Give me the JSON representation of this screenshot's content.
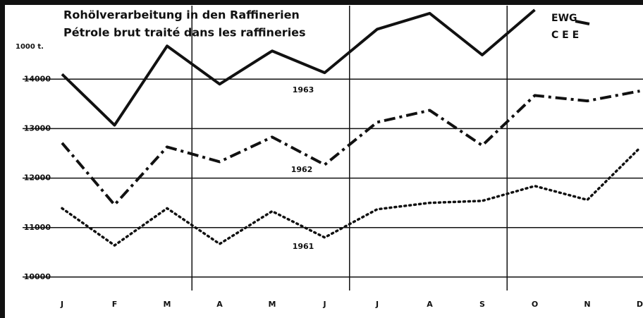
{
  "chart_data": {
    "type": "line",
    "title": "Rohölverarbeitung in den Raffinerien",
    "subtitle": "Pétrole brut traité dans les raffineries",
    "y_label": "1000 t.",
    "legend": [
      "EWG",
      "C E E"
    ],
    "categories": [
      "J",
      "F",
      "M",
      "A",
      "M",
      "J",
      "J",
      "A",
      "S",
      "O",
      "N",
      "D"
    ],
    "series": [
      {
        "name": "1963",
        "color": "#111111",
        "dash": "solid",
        "values": [
          14100,
          13070,
          14670,
          13900,
          14570,
          14130,
          15010,
          15330,
          14490,
          15400,
          null,
          null
        ]
      },
      {
        "name": "1962",
        "color": "#111111",
        "dash": "dashdot",
        "values": [
          12710,
          11460,
          12630,
          12330,
          12830,
          12270,
          13130,
          13370,
          12660,
          13670,
          13560,
          13760
        ]
      },
      {
        "name": "1961",
        "color": "#111111",
        "dash": "dotted",
        "values": [
          11390,
          10640,
          11390,
          10670,
          11330,
          10800,
          11370,
          11500,
          11540,
          11840,
          11560,
          12610
        ]
      }
    ],
    "ylim": [
      9600,
      15600
    ],
    "yticks": [
      10000,
      11000,
      12000,
      13000,
      14000
    ],
    "grid": true
  }
}
